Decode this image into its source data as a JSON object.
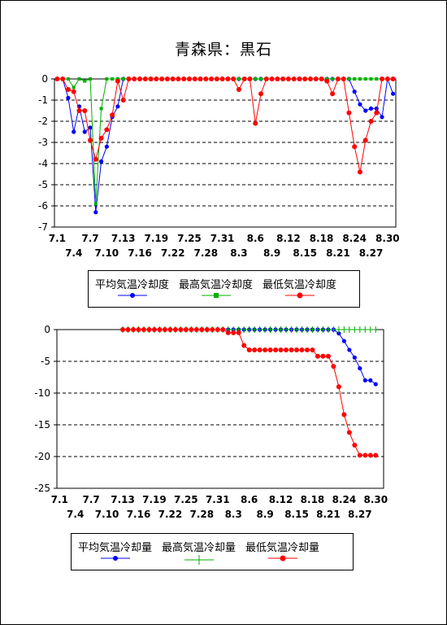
{
  "title": "青森県：黒石",
  "colors": {
    "mean": "#0000ff",
    "max": "#00b000",
    "min": "#ff0000"
  },
  "x_tick_labels_top": [
    "7.1",
    "7.7",
    "7.13",
    "7.19",
    "7.25",
    "7.31",
    "8.6",
    "8.12",
    "8.18",
    "8.24",
    "8.30"
  ],
  "x_tick_labels_bottom": [
    "7.4",
    "7.10",
    "7.16",
    "7.22",
    "7.28",
    "8.3",
    "8.9",
    "8.15",
    "8.21",
    "8.27"
  ],
  "legends": [
    [
      "平均気温冷却度",
      "最高気温冷却度",
      "最低気温冷却度"
    ],
    [
      "平均気温冷却量",
      "最高気温冷却量",
      "最低気温冷却量"
    ]
  ],
  "chart_data": [
    {
      "type": "line",
      "x": [
        "7.1",
        "7.2",
        "7.3",
        "7.4",
        "7.5",
        "7.6",
        "7.7",
        "7.8",
        "7.9",
        "7.10",
        "7.11",
        "7.12",
        "7.13",
        "7.14",
        "7.15",
        "7.16",
        "7.17",
        "7.18",
        "7.19",
        "7.20",
        "7.21",
        "7.22",
        "7.23",
        "7.24",
        "7.25",
        "7.26",
        "7.27",
        "7.28",
        "7.29",
        "7.30",
        "7.31",
        "8.1",
        "8.2",
        "8.3",
        "8.4",
        "8.5",
        "8.6",
        "8.7",
        "8.8",
        "8.9",
        "8.10",
        "8.11",
        "8.12",
        "8.13",
        "8.14",
        "8.15",
        "8.16",
        "8.17",
        "8.18",
        "8.19",
        "8.20",
        "8.21",
        "8.22",
        "8.23",
        "8.24",
        "8.25",
        "8.26",
        "8.27",
        "8.28",
        "8.29",
        "8.30",
        "8.31"
      ],
      "ylim": [
        -7,
        0
      ],
      "yticks": [
        0,
        -1,
        -2,
        -3,
        -4,
        -5,
        -6,
        -7
      ],
      "grid": true,
      "series": [
        {
          "name": "平均気温冷却度",
          "values": [
            0,
            0,
            -0.9,
            -2.5,
            -1.3,
            -2.5,
            -2.3,
            -6.3,
            -3.9,
            -3.2,
            -1.8,
            -1.3,
            0,
            0,
            0,
            0,
            0,
            0,
            0,
            0,
            0,
            0,
            0,
            0,
            0,
            0,
            0,
            0,
            0,
            0,
            0,
            0,
            0,
            0,
            0,
            0,
            0,
            0,
            0,
            0,
            0,
            0,
            0,
            0,
            0,
            0,
            0,
            0,
            0,
            0,
            0,
            0,
            0,
            0,
            -0.6,
            -1.2,
            -1.5,
            -1.4,
            -1.4,
            -1.8,
            0,
            -0.7
          ]
        },
        {
          "name": "最高気温冷却度",
          "values": [
            0,
            0,
            0,
            -0.4,
            0,
            -0.1,
            0,
            -5.9,
            -1.4,
            0,
            0,
            0,
            0,
            0,
            0,
            0,
            0,
            0,
            0,
            0,
            0,
            0,
            0,
            0,
            0,
            0,
            0,
            0,
            0,
            0,
            0,
            0,
            0,
            0,
            0,
            0,
            0,
            0,
            0,
            0,
            0,
            0,
            0,
            0,
            0,
            0,
            0,
            0,
            0,
            0,
            0,
            0,
            0,
            0,
            0,
            0,
            0,
            0,
            0,
            0,
            0,
            0
          ]
        },
        {
          "name": "最低気温冷却度",
          "values": [
            0,
            0,
            -0.5,
            -0.6,
            -1.5,
            -1.5,
            -2.9,
            -3.8,
            -2.8,
            -2.4,
            -1.7,
            -0.1,
            -1.0,
            0,
            0,
            0,
            0,
            0,
            0,
            0,
            0,
            0,
            0,
            0,
            0,
            0,
            0,
            0,
            0,
            0,
            0,
            0,
            0,
            -0.5,
            0,
            0,
            -2.1,
            -0.7,
            0,
            0,
            0,
            0,
            0,
            0,
            0,
            0,
            0,
            0,
            0,
            -0.1,
            -0.7,
            0,
            0,
            -1.6,
            -3.2,
            -4.4,
            -2.9,
            -2.0,
            -1.6,
            0,
            0,
            0
          ]
        }
      ]
    },
    {
      "type": "line",
      "x": [
        "7.13",
        "7.14",
        "7.15",
        "7.16",
        "7.17",
        "7.18",
        "7.19",
        "7.20",
        "7.21",
        "7.22",
        "7.23",
        "7.24",
        "7.25",
        "7.26",
        "7.27",
        "7.28",
        "7.29",
        "7.30",
        "7.31",
        "8.1",
        "8.2",
        "8.3",
        "8.4",
        "8.5",
        "8.6",
        "8.7",
        "8.8",
        "8.9",
        "8.10",
        "8.11",
        "8.12",
        "8.13",
        "8.14",
        "8.15",
        "8.16",
        "8.17",
        "8.18",
        "8.19",
        "8.20",
        "8.21",
        "8.22",
        "8.23",
        "8.24",
        "8.25",
        "8.26",
        "8.27",
        "8.28",
        "8.29",
        "8.30"
      ],
      "ylim": [
        -25,
        0
      ],
      "yticks": [
        0,
        -5,
        -10,
        -15,
        -20,
        -25
      ],
      "grid": true,
      "series": [
        {
          "name": "平均気温冷却量",
          "values": [
            0,
            0,
            0,
            0,
            0,
            0,
            0,
            0,
            0,
            0,
            0,
            0,
            0,
            0,
            0,
            0,
            0,
            0,
            0,
            0,
            0,
            0,
            0,
            0,
            0,
            0,
            0,
            0,
            0,
            0,
            0,
            0,
            0,
            0,
            0,
            0,
            0,
            0,
            0,
            0,
            0,
            -0.6,
            -1.8,
            -3.2,
            -4.4,
            -6.1,
            -8.0,
            -8.0,
            -8.6
          ]
        },
        {
          "name": "最高気温冷却量",
          "values": [
            0,
            0,
            0,
            0,
            0,
            0,
            0,
            0,
            0,
            0,
            0,
            0,
            0,
            0,
            0,
            0,
            0,
            0,
            0,
            0,
            0,
            0,
            0,
            0,
            0,
            0,
            0,
            0,
            0,
            0,
            0,
            0,
            0,
            0,
            0,
            0,
            0,
            0,
            0,
            0,
            0,
            0,
            0,
            0,
            0,
            0,
            0,
            0,
            0
          ]
        },
        {
          "name": "最低気温冷却量",
          "values": [
            0,
            0,
            0,
            0,
            0,
            0,
            0,
            0,
            0,
            0,
            0,
            0,
            0,
            0,
            0,
            0,
            0,
            0,
            0,
            0,
            -0.5,
            -0.5,
            -0.5,
            -2.5,
            -3.2,
            -3.2,
            -3.2,
            -3.2,
            -3.2,
            -3.2,
            -3.2,
            -3.2,
            -3.2,
            -3.2,
            -3.2,
            -3.2,
            -3.2,
            -4.2,
            -4.2,
            -4.2,
            -5.8,
            -9.0,
            -13.4,
            -16.2,
            -18.2,
            -19.8,
            -19.8,
            -19.8,
            -19.8
          ]
        }
      ]
    }
  ]
}
